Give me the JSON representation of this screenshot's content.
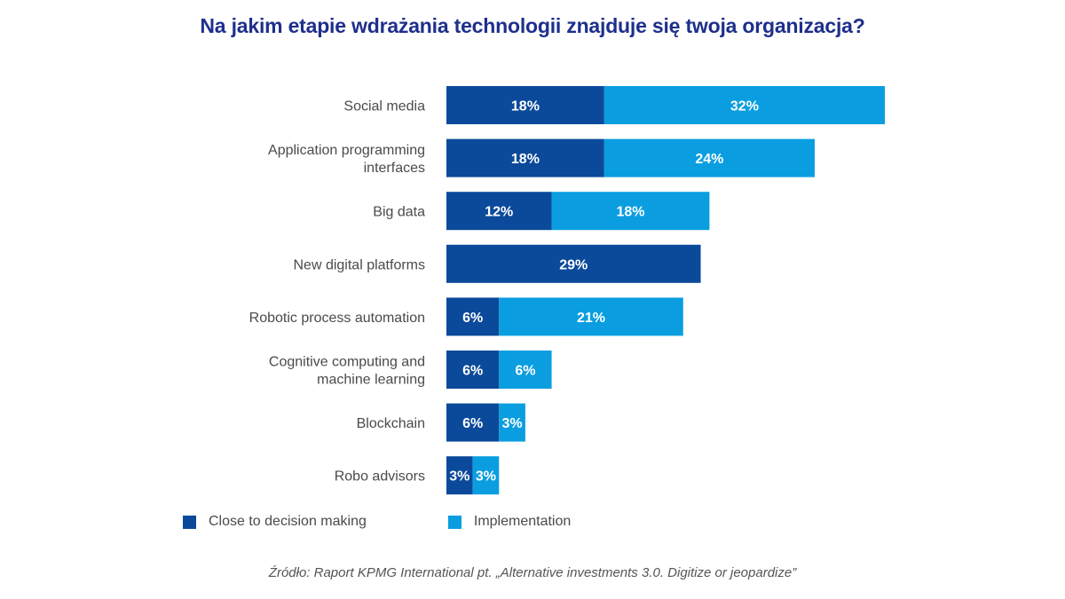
{
  "chart_data": {
    "type": "bar",
    "orientation": "horizontal",
    "stacked": true,
    "title": "Na jakim etapie wdrażania technologii znajduje się twoja organizacja?",
    "xlabel": "",
    "ylabel": "",
    "xlim": [
      0,
      50
    ],
    "grid": false,
    "legend_position": "bottom-left",
    "categories": [
      [
        "Social media"
      ],
      [
        "Application programming",
        "interfaces"
      ],
      [
        "Big data"
      ],
      [
        "New digital platforms"
      ],
      [
        "Robotic process automation"
      ],
      [
        "Cognitive computing and",
        "machine learning"
      ],
      [
        "Blockchain"
      ],
      [
        "Robo advisors"
      ]
    ],
    "series": [
      {
        "name": "Close to decision making",
        "color": "#0b4a9a",
        "values": [
          18,
          18,
          12,
          29,
          6,
          6,
          6,
          3
        ]
      },
      {
        "name": "Implementation",
        "color": "#0a9ee0",
        "values": [
          32,
          24,
          18,
          0,
          21,
          6,
          3,
          3
        ]
      }
    ],
    "value_suffix": "%",
    "source": "Źródło: Raport KPMG International pt. „Alternative investments 3.0. Digitize or jeopardize”"
  }
}
